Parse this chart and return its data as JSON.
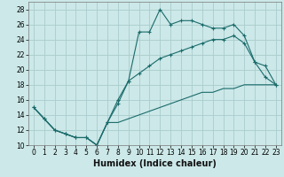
{
  "xlabel": "Humidex (Indice chaleur)",
  "bg_color": "#cce8e8",
  "grid_color": "#aacccc",
  "line_color": "#1a6b6b",
  "xlim": [
    -0.5,
    23.5
  ],
  "ylim": [
    10,
    29
  ],
  "xticks": [
    0,
    1,
    2,
    3,
    4,
    5,
    6,
    7,
    8,
    9,
    10,
    11,
    12,
    13,
    14,
    15,
    16,
    17,
    18,
    19,
    20,
    21,
    22,
    23
  ],
  "yticks": [
    10,
    12,
    14,
    16,
    18,
    20,
    22,
    24,
    26,
    28
  ],
  "line1_x": [
    0,
    1,
    2,
    3,
    4,
    5,
    6,
    7,
    8,
    9,
    10,
    11,
    12,
    13,
    14,
    15,
    16,
    17,
    18,
    19,
    20,
    21,
    22,
    23
  ],
  "line1_y": [
    15,
    13.5,
    12,
    11.5,
    11,
    11,
    10,
    13,
    15.5,
    18.5,
    25,
    25,
    28,
    26,
    26.5,
    26.5,
    26,
    25.5,
    25.5,
    26,
    24.5,
    21,
    19,
    18
  ],
  "line2_x": [
    0,
    1,
    2,
    3,
    4,
    5,
    6,
    7,
    8,
    9,
    10,
    11,
    12,
    13,
    14,
    15,
    16,
    17,
    18,
    19,
    20,
    21,
    22,
    23
  ],
  "line2_y": [
    15,
    13.5,
    12,
    11.5,
    11,
    11,
    10,
    13,
    16,
    18.5,
    19.5,
    20.5,
    21.5,
    22,
    22.5,
    23,
    23.5,
    24,
    24,
    24.5,
    23.5,
    21,
    20.5,
    18
  ],
  "line3_x": [
    0,
    1,
    2,
    3,
    4,
    5,
    6,
    7,
    8,
    9,
    10,
    11,
    12,
    13,
    14,
    15,
    16,
    17,
    18,
    19,
    20,
    21,
    22,
    23
  ],
  "line3_y": [
    15,
    13.5,
    12,
    11.5,
    11,
    11,
    10,
    13,
    13,
    13.5,
    14,
    14.5,
    15,
    15.5,
    16,
    16.5,
    17,
    17,
    17.5,
    17.5,
    18,
    18,
    18,
    18
  ],
  "xlabel_fontsize": 7,
  "tick_fontsize": 5.5
}
